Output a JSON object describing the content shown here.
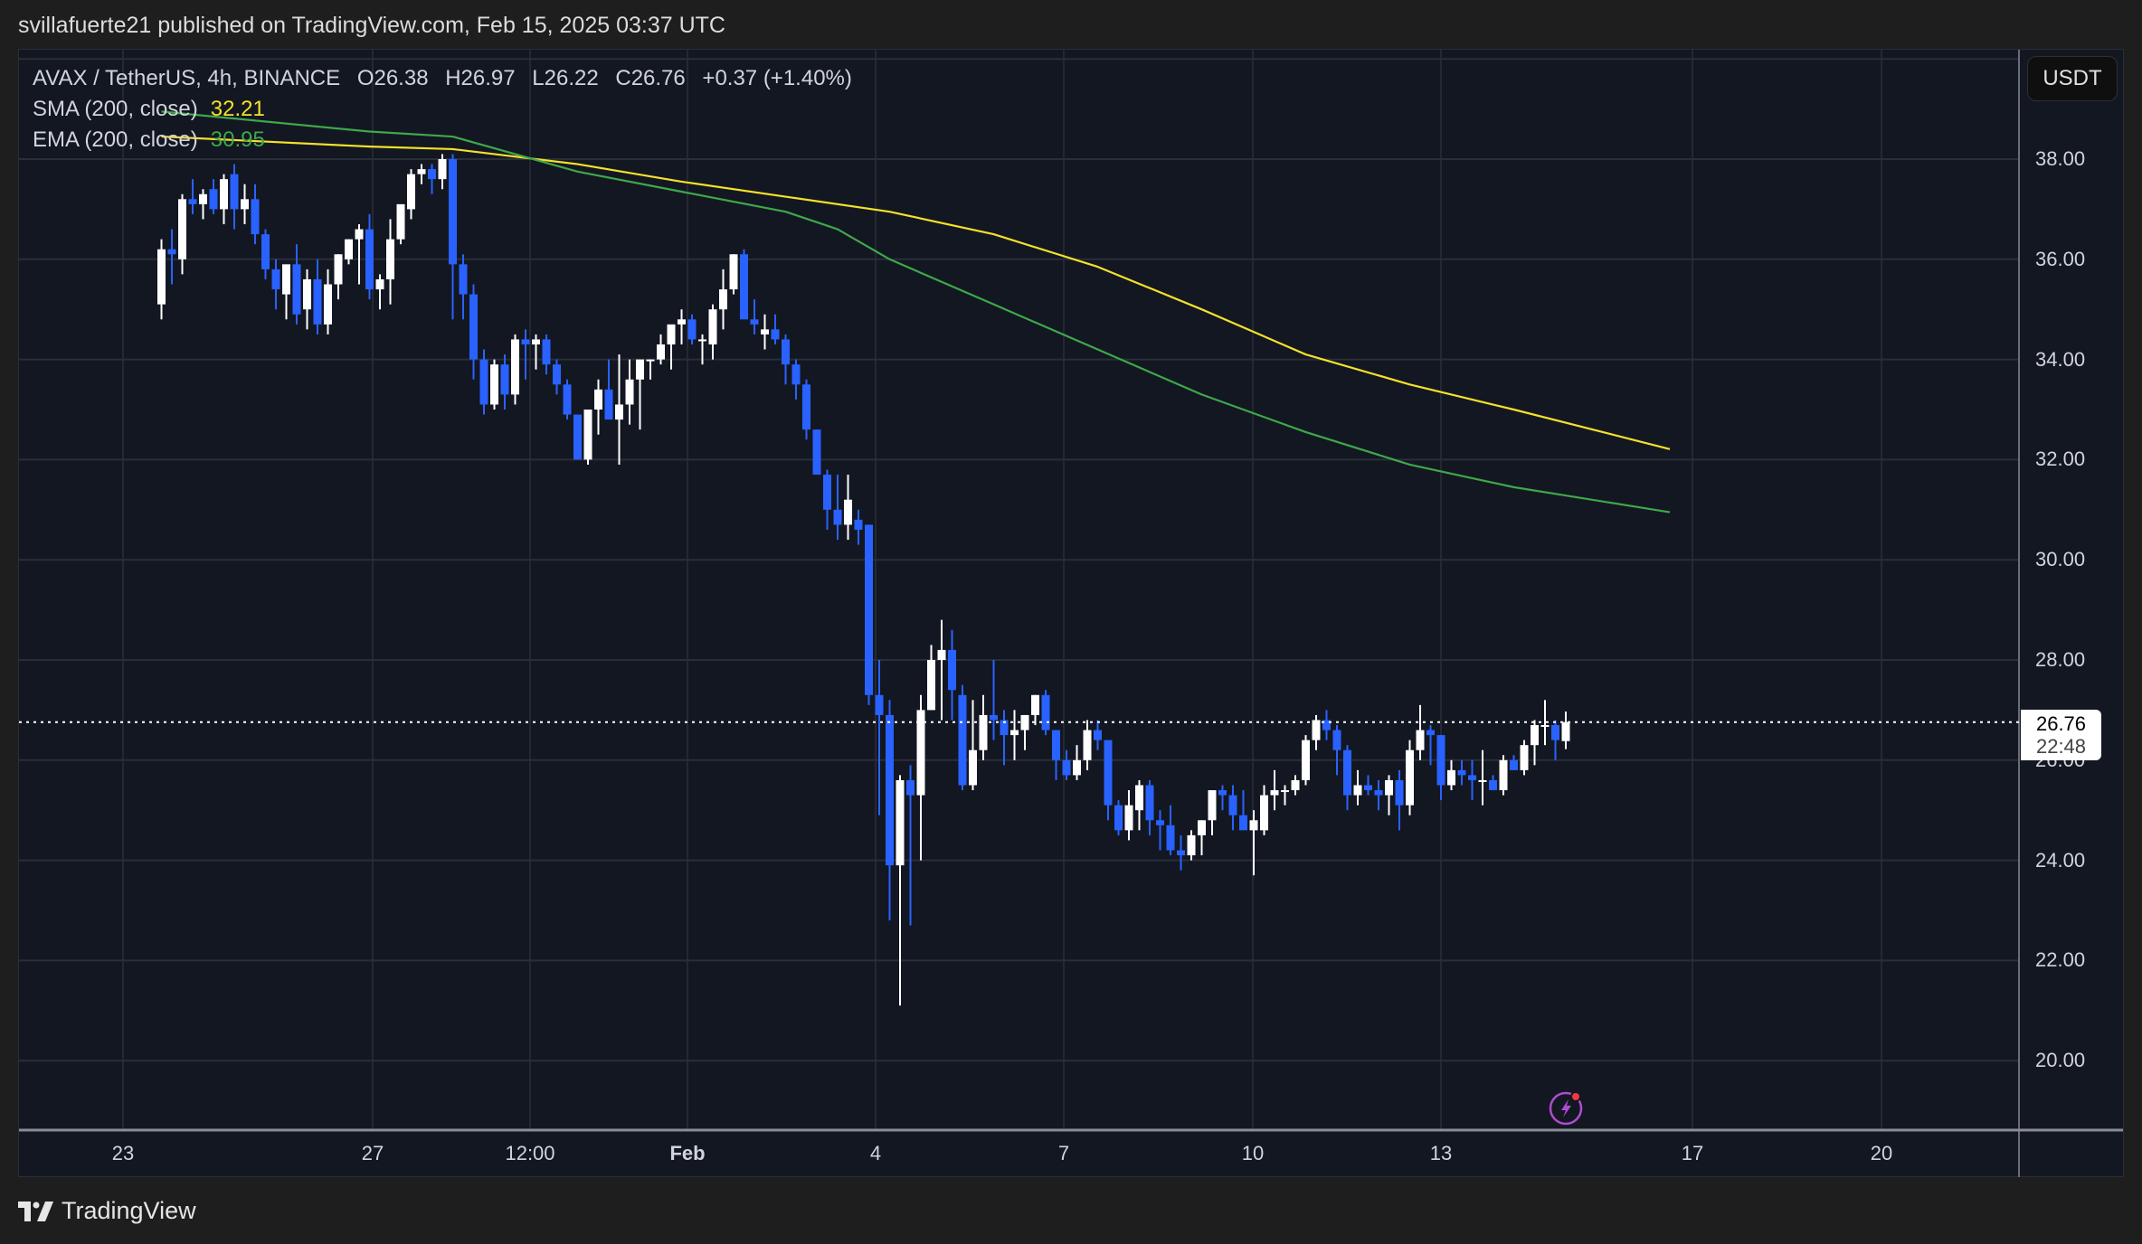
{
  "header": {
    "published": "svillafuerte21 published on TradingView.com, Feb 15, 2025 03:37 UTC"
  },
  "legend": {
    "symbol": "AVAX / TetherUS, 4h, BINANCE",
    "open": "O26.38",
    "high": "H26.97",
    "low": "L26.22",
    "close": "C26.76",
    "change": "+0.37 (+1.40%)",
    "sma_label": "SMA (200, close)",
    "sma_value": "32.21",
    "ema_label": "EMA (200, close)",
    "ema_value": "30.95"
  },
  "price_axis": {
    "currency_button": "USDT",
    "ticks": [
      "38.00",
      "36.00",
      "34.00",
      "32.00",
      "30.00",
      "28.00",
      "26.00",
      "24.00",
      "22.00",
      "20.00"
    ],
    "current_price": "26.76",
    "countdown": "22:48"
  },
  "time_axis": {
    "ticks": [
      "23",
      "27",
      "12:00",
      "Feb",
      "4",
      "7",
      "10",
      "13",
      "17",
      "20"
    ]
  },
  "branding": {
    "logo_text": "TradingView"
  },
  "colors": {
    "up": "#ffffff",
    "down": "#2962ff",
    "sma": "#f5e12a",
    "ema": "#3ea84a",
    "background": "#131722",
    "grid": "#2a2e39",
    "alert_icon": "#b04bd1"
  },
  "chart_data": {
    "type": "candlestick",
    "title": "AVAX / TetherUS, 4h, BINANCE",
    "xlabel": "",
    "ylabel": "USDT",
    "ylim": [
      19.3,
      40.2
    ],
    "y_ticks": [
      20,
      22,
      24,
      26,
      28,
      30,
      32,
      34,
      36,
      38
    ],
    "x_tick_labels": [
      "23",
      "27",
      "12:00",
      "Feb",
      "4",
      "7",
      "10",
      "13",
      "17",
      "20"
    ],
    "grid": true,
    "current_price": 26.76,
    "ohlc": [
      [
        35.1,
        36.4,
        34.8,
        36.2
      ],
      [
        36.2,
        36.6,
        35.5,
        36.1
      ],
      [
        36.0,
        37.3,
        35.7,
        37.2
      ],
      [
        37.2,
        37.6,
        36.9,
        37.1
      ],
      [
        37.1,
        37.4,
        36.8,
        37.3
      ],
      [
        37.4,
        37.6,
        36.9,
        37.0
      ],
      [
        37.0,
        37.7,
        36.7,
        37.6
      ],
      [
        37.7,
        37.9,
        36.6,
        37.0
      ],
      [
        37.0,
        37.5,
        36.7,
        37.2
      ],
      [
        37.2,
        37.5,
        36.3,
        36.5
      ],
      [
        36.5,
        36.6,
        35.6,
        35.8
      ],
      [
        35.8,
        36.0,
        35.0,
        35.4
      ],
      [
        35.3,
        35.6,
        34.8,
        35.9
      ],
      [
        35.9,
        36.3,
        34.7,
        34.9
      ],
      [
        35.0,
        35.8,
        34.6,
        35.6
      ],
      [
        35.6,
        36.0,
        34.5,
        34.7
      ],
      [
        34.7,
        35.8,
        34.5,
        35.5
      ],
      [
        35.5,
        36.1,
        35.2,
        36.1
      ],
      [
        36.0,
        36.4,
        35.9,
        36.4
      ],
      [
        36.4,
        36.7,
        35.5,
        36.6
      ],
      [
        36.6,
        36.9,
        35.2,
        35.4
      ],
      [
        35.4,
        35.7,
        35.0,
        35.6
      ],
      [
        35.6,
        36.8,
        35.1,
        36.4
      ],
      [
        36.4,
        37.0,
        36.3,
        37.1
      ],
      [
        37.0,
        37.8,
        36.8,
        37.7
      ],
      [
        37.7,
        37.9,
        37.5,
        37.8
      ],
      [
        37.8,
        37.9,
        37.3,
        37.6
      ],
      [
        37.6,
        38.1,
        37.4,
        38.0
      ],
      [
        38.0,
        38.1,
        34.8,
        35.9
      ],
      [
        35.9,
        36.1,
        34.8,
        35.3
      ],
      [
        35.3,
        35.5,
        33.6,
        34.0
      ],
      [
        34.0,
        34.2,
        32.9,
        33.1
      ],
      [
        33.1,
        34.0,
        33.0,
        33.9
      ],
      [
        33.9,
        34.1,
        33.0,
        33.3
      ],
      [
        33.3,
        34.5,
        33.1,
        34.4
      ],
      [
        34.4,
        34.6,
        33.6,
        34.3
      ],
      [
        34.3,
        34.5,
        33.8,
        34.4
      ],
      [
        34.4,
        34.5,
        33.7,
        33.9
      ],
      [
        33.9,
        34.0,
        33.3,
        33.5
      ],
      [
        33.5,
        33.6,
        32.8,
        32.9
      ],
      [
        32.9,
        32.9,
        32.0,
        32.0
      ],
      [
        32.0,
        33.0,
        31.9,
        33.0
      ],
      [
        33.0,
        33.6,
        32.5,
        33.4
      ],
      [
        33.4,
        34.0,
        32.9,
        32.8
      ],
      [
        32.8,
        34.1,
        31.9,
        33.1
      ],
      [
        33.1,
        34.0,
        32.7,
        33.6
      ],
      [
        33.6,
        33.8,
        32.6,
        34.0
      ],
      [
        34.0,
        34.0,
        33.6,
        34.0
      ],
      [
        34.0,
        34.5,
        33.9,
        34.3
      ],
      [
        34.3,
        34.4,
        33.8,
        34.7
      ],
      [
        34.7,
        35.0,
        34.3,
        34.8
      ],
      [
        34.8,
        34.9,
        34.3,
        34.4
      ],
      [
        34.4,
        34.5,
        33.9,
        34.4
      ],
      [
        34.3,
        35.1,
        34.0,
        35.0
      ],
      [
        35.0,
        35.8,
        34.6,
        35.4
      ],
      [
        35.4,
        36.1,
        35.3,
        36.1
      ],
      [
        36.1,
        36.2,
        34.8,
        34.8
      ],
      [
        34.8,
        35.2,
        34.5,
        34.7
      ],
      [
        34.5,
        34.9,
        34.2,
        34.6
      ],
      [
        34.6,
        34.9,
        34.3,
        34.4
      ],
      [
        34.4,
        34.5,
        33.5,
        33.9
      ],
      [
        33.9,
        34.0,
        33.2,
        33.5
      ],
      [
        33.5,
        33.6,
        32.4,
        32.6
      ],
      [
        32.6,
        32.6,
        31.7,
        31.7
      ],
      [
        31.7,
        31.8,
        30.6,
        31.0
      ],
      [
        31.0,
        31.7,
        30.4,
        30.7
      ],
      [
        30.7,
        31.7,
        30.4,
        31.2
      ],
      [
        30.8,
        31.0,
        30.3,
        30.6
      ],
      [
        30.7,
        30.7,
        27.1,
        27.3
      ],
      [
        27.3,
        28.0,
        24.9,
        26.9
      ],
      [
        26.9,
        27.2,
        22.8,
        23.9
      ],
      [
        23.9,
        25.7,
        21.1,
        25.6
      ],
      [
        25.6,
        25.9,
        22.7,
        25.3
      ],
      [
        25.3,
        27.3,
        24.0,
        27.0
      ],
      [
        27.0,
        28.3,
        27.0,
        28.0
      ],
      [
        28.0,
        28.8,
        26.8,
        28.2
      ],
      [
        28.2,
        28.6,
        26.8,
        27.4
      ],
      [
        27.3,
        27.5,
        25.4,
        25.5
      ],
      [
        25.5,
        27.2,
        25.4,
        26.2
      ],
      [
        26.2,
        27.3,
        26.0,
        26.9
      ],
      [
        26.9,
        28.0,
        26.4,
        26.8
      ],
      [
        26.8,
        27.0,
        25.9,
        26.5
      ],
      [
        26.5,
        27.0,
        26.0,
        26.6
      ],
      [
        26.6,
        26.9,
        26.2,
        26.9
      ],
      [
        26.9,
        27.3,
        26.7,
        27.3
      ],
      [
        27.3,
        27.4,
        26.5,
        26.6
      ],
      [
        26.6,
        26.6,
        25.6,
        26.0
      ],
      [
        26.0,
        26.2,
        25.6,
        25.7
      ],
      [
        25.7,
        26.3,
        25.6,
        26.0
      ],
      [
        26.0,
        26.8,
        25.8,
        26.6
      ],
      [
        26.6,
        26.8,
        26.2,
        26.4
      ],
      [
        26.4,
        26.4,
        24.8,
        25.1
      ],
      [
        25.1,
        25.2,
        24.5,
        24.6
      ],
      [
        24.6,
        25.4,
        24.4,
        25.1
      ],
      [
        25.0,
        25.6,
        24.6,
        25.5
      ],
      [
        25.5,
        25.6,
        24.5,
        24.8
      ],
      [
        24.8,
        25.0,
        24.2,
        24.7
      ],
      [
        24.7,
        25.1,
        24.1,
        24.2
      ],
      [
        24.2,
        24.5,
        23.8,
        24.1
      ],
      [
        24.1,
        24.6,
        24.0,
        24.5
      ],
      [
        24.5,
        24.8,
        24.1,
        24.8
      ],
      [
        24.8,
        25.2,
        24.5,
        25.4
      ],
      [
        25.4,
        25.5,
        25.0,
        25.3
      ],
      [
        25.3,
        25.5,
        24.6,
        24.9
      ],
      [
        24.9,
        25.4,
        24.8,
        24.6
      ],
      [
        24.6,
        25.0,
        23.7,
        24.8
      ],
      [
        24.6,
        25.5,
        24.5,
        25.3
      ],
      [
        25.3,
        25.8,
        25.0,
        25.4
      ],
      [
        25.4,
        25.5,
        25.1,
        25.4
      ],
      [
        25.4,
        25.7,
        25.3,
        25.6
      ],
      [
        25.6,
        26.5,
        25.5,
        26.4
      ],
      [
        26.4,
        26.9,
        26.2,
        26.8
      ],
      [
        26.8,
        27.0,
        26.4,
        26.6
      ],
      [
        26.6,
        26.7,
        25.7,
        26.2
      ],
      [
        26.2,
        26.3,
        25.0,
        25.3
      ],
      [
        25.3,
        25.8,
        25.1,
        25.5
      ],
      [
        25.5,
        25.7,
        25.3,
        25.4
      ],
      [
        25.4,
        25.6,
        25.0,
        25.3
      ],
      [
        25.3,
        25.7,
        24.9,
        25.6
      ],
      [
        25.6,
        25.8,
        24.6,
        25.1
      ],
      [
        25.1,
        26.4,
        24.9,
        26.2
      ],
      [
        26.2,
        27.1,
        26.0,
        26.6
      ],
      [
        26.6,
        26.7,
        25.9,
        26.5
      ],
      [
        26.5,
        26.5,
        25.2,
        25.5
      ],
      [
        25.5,
        26.0,
        25.4,
        25.8
      ],
      [
        25.8,
        26.0,
        25.5,
        25.7
      ],
      [
        25.7,
        26.0,
        25.2,
        25.6
      ],
      [
        25.6,
        26.2,
        25.1,
        25.6
      ],
      [
        25.6,
        25.7,
        25.4,
        25.4
      ],
      [
        25.4,
        26.1,
        25.3,
        26.0
      ],
      [
        26.0,
        26.1,
        25.8,
        25.8
      ],
      [
        25.8,
        26.4,
        25.7,
        26.3
      ],
      [
        26.3,
        26.8,
        25.9,
        26.7
      ],
      [
        26.7,
        27.2,
        26.3,
        26.7
      ],
      [
        26.7,
        26.8,
        26.0,
        26.4
      ],
      [
        26.38,
        26.97,
        26.22,
        26.76
      ]
    ],
    "series": [
      {
        "name": "SMA (200, close)",
        "color": "#f5e12a",
        "last": 32.21,
        "points": [
          [
            0,
            38.45
          ],
          [
            20,
            38.25
          ],
          [
            28,
            38.2
          ],
          [
            40,
            37.9
          ],
          [
            50,
            37.55
          ],
          [
            60,
            37.25
          ],
          [
            70,
            36.95
          ],
          [
            80,
            36.5
          ],
          [
            90,
            35.85
          ],
          [
            100,
            35.0
          ],
          [
            110,
            34.1
          ],
          [
            120,
            33.5
          ],
          [
            130,
            33.0
          ],
          [
            145,
            32.21
          ]
        ]
      },
      {
        "name": "EMA (200, close)",
        "color": "#3ea84a",
        "last": 30.95,
        "points": [
          [
            0,
            38.95
          ],
          [
            20,
            38.55
          ],
          [
            28,
            38.45
          ],
          [
            40,
            37.75
          ],
          [
            50,
            37.35
          ],
          [
            60,
            36.95
          ],
          [
            65,
            36.6
          ],
          [
            70,
            36.0
          ],
          [
            80,
            35.1
          ],
          [
            90,
            34.2
          ],
          [
            100,
            33.3
          ],
          [
            110,
            32.55
          ],
          [
            120,
            31.9
          ],
          [
            130,
            31.45
          ],
          [
            145,
            30.95
          ]
        ]
      }
    ]
  }
}
